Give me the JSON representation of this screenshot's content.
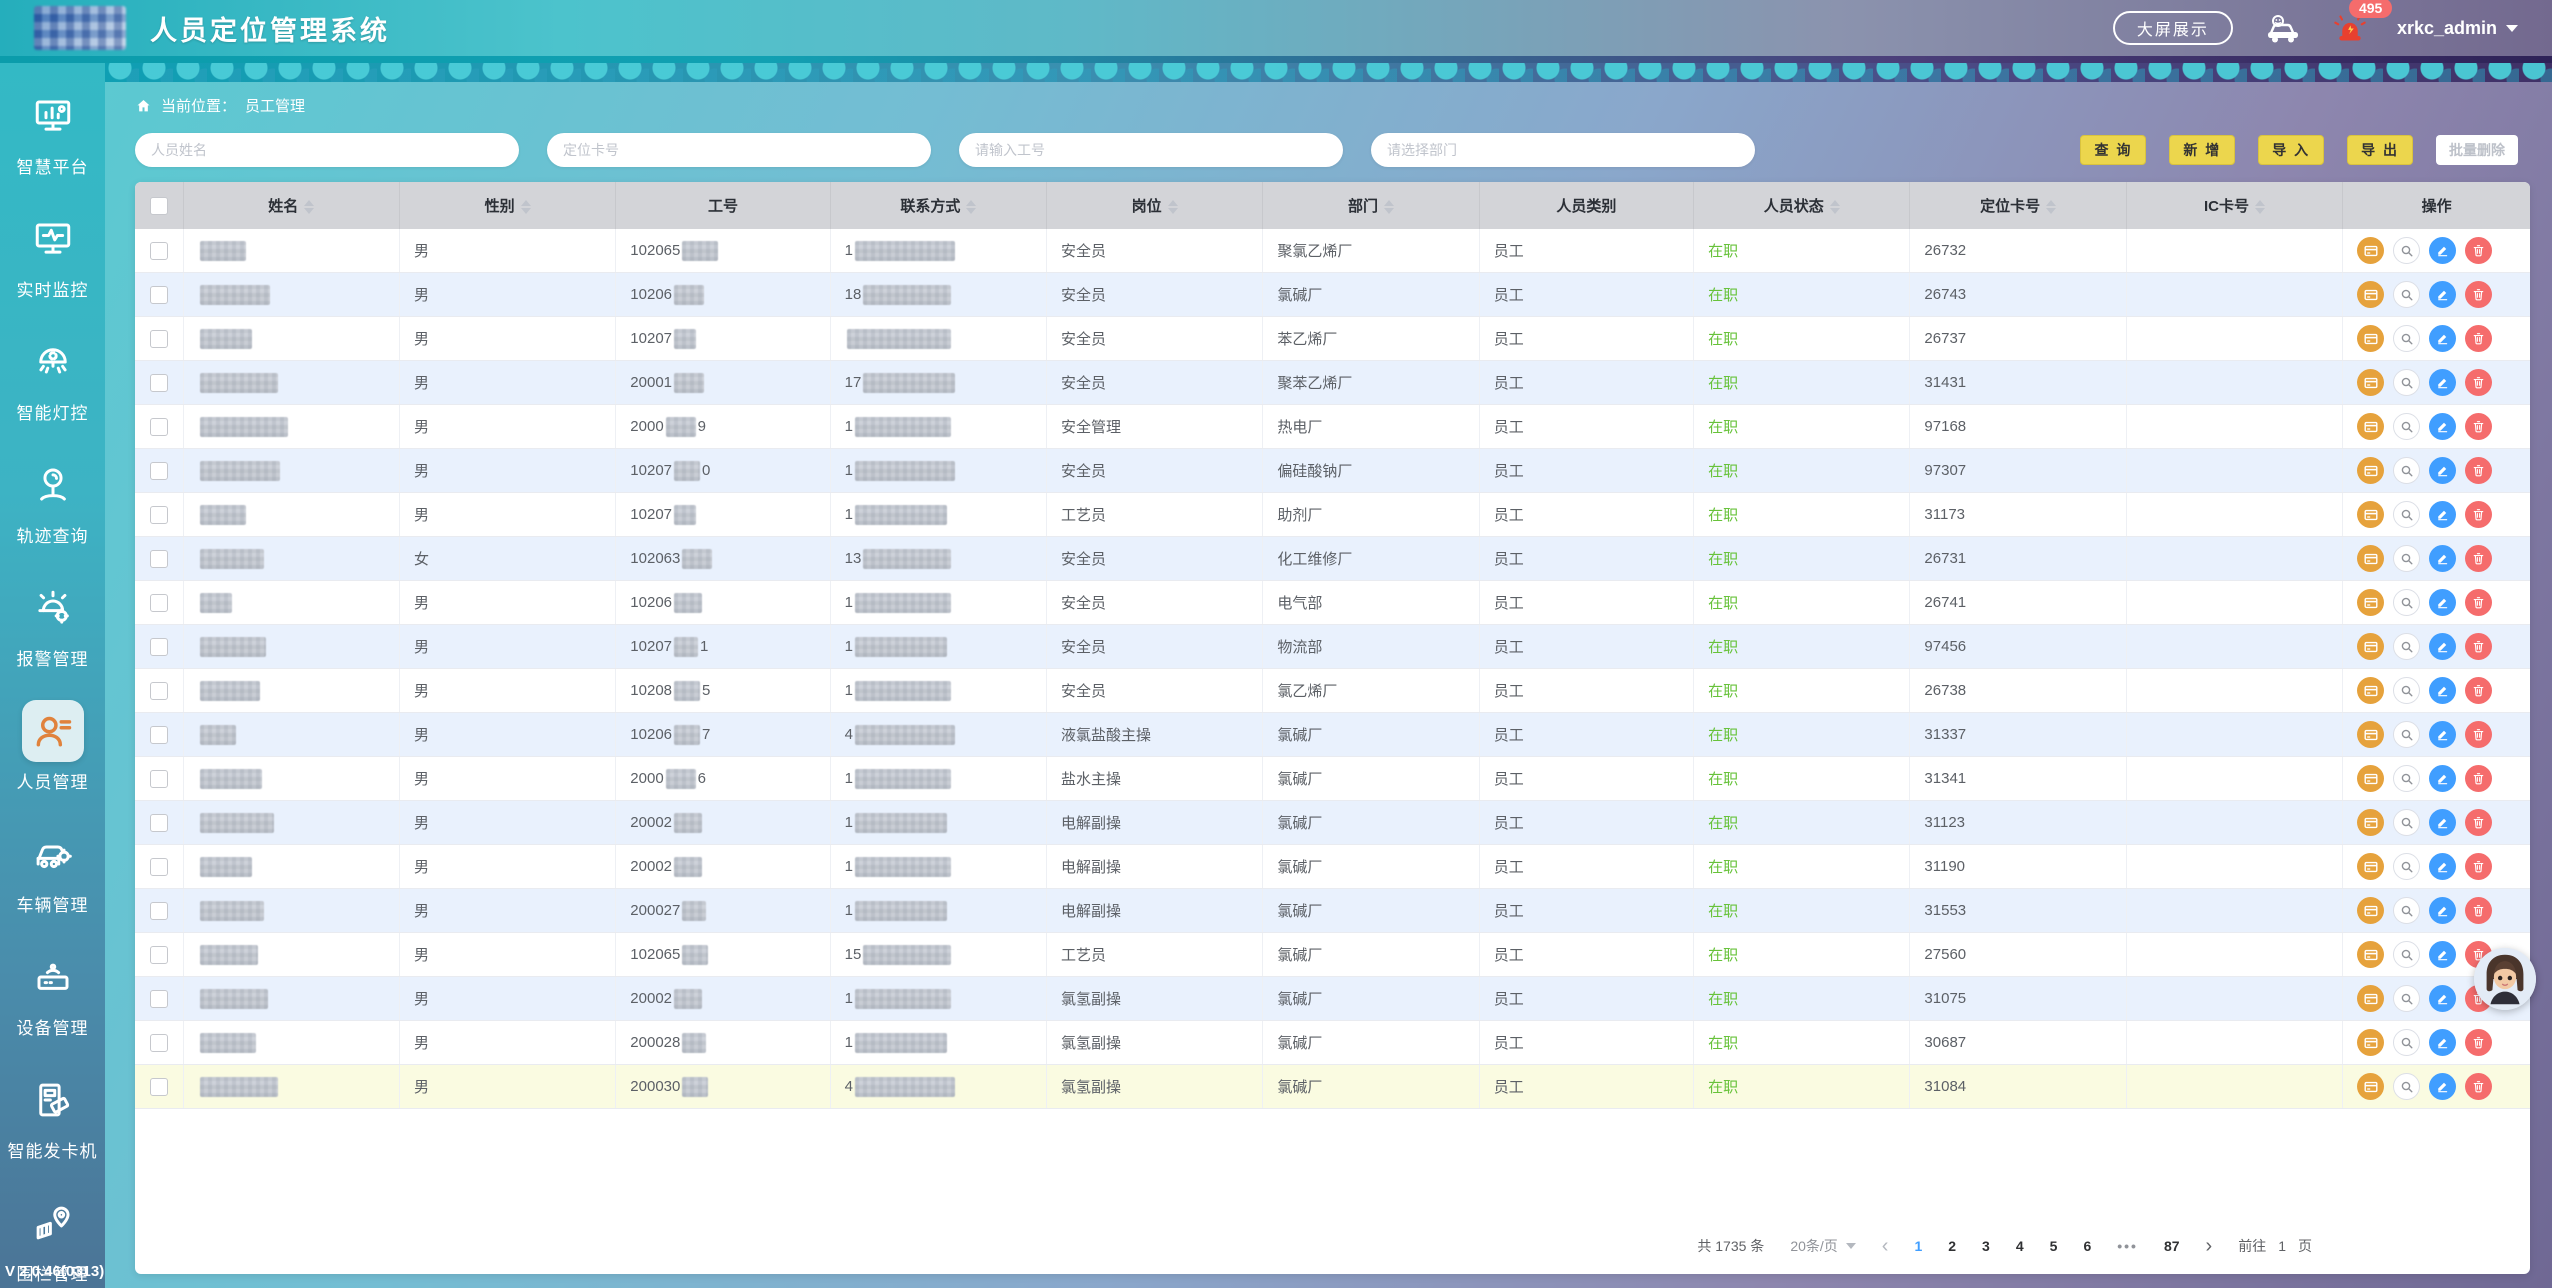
{
  "header": {
    "title": "人员定位管理系统",
    "big_screen_button": "大屏展示",
    "alarm_badge": "495",
    "username": "xrkc_admin"
  },
  "sidebar": {
    "items": [
      {
        "label": "智慧平台",
        "icon": "smart-platform-icon",
        "active": false
      },
      {
        "label": "实时监控",
        "icon": "realtime-monitor-icon",
        "active": false
      },
      {
        "label": "智能灯控",
        "icon": "smart-light-icon",
        "active": false
      },
      {
        "label": "轨迹查询",
        "icon": "track-query-icon",
        "active": false
      },
      {
        "label": "报警管理",
        "icon": "alarm-manage-icon",
        "active": false
      },
      {
        "label": "人员管理",
        "icon": "person-manage-icon",
        "active": true
      },
      {
        "label": "车辆管理",
        "icon": "vehicle-manage-icon",
        "active": false
      },
      {
        "label": "设备管理",
        "icon": "device-manage-icon",
        "active": false
      },
      {
        "label": "智能发卡机",
        "icon": "card-dispenser-icon",
        "active": false
      },
      {
        "label": "围栏管理",
        "icon": "fence-manage-icon",
        "active": false
      }
    ],
    "version": "V 2.0.46(0313)"
  },
  "breadcrumb": {
    "prefix": "当前位置：",
    "current": "员工管理"
  },
  "filters": {
    "name_placeholder": "人员姓名",
    "card_placeholder": "定位卡号",
    "workno_placeholder": "请输入工号",
    "dept_placeholder": "请选择部门"
  },
  "toolbar": {
    "query": "查 询",
    "add": "新 增",
    "import": "导 入",
    "export": "导 出",
    "batch_delete": "批量删除"
  },
  "table": {
    "columns": [
      {
        "label": "姓名",
        "sortable": true
      },
      {
        "label": "性别",
        "sortable": true
      },
      {
        "label": "工号",
        "sortable": false
      },
      {
        "label": "联系方式",
        "sortable": true
      },
      {
        "label": "岗位",
        "sortable": true
      },
      {
        "label": "部门",
        "sortable": true
      },
      {
        "label": "人员类别",
        "sortable": false
      },
      {
        "label": "人员状态",
        "sortable": true
      },
      {
        "label": "定位卡号",
        "sortable": true
      },
      {
        "label": "IC卡号",
        "sortable": true
      },
      {
        "label": "操作",
        "sortable": false
      }
    ],
    "status_color": "#67c23a",
    "rows": [
      {
        "name_w": 46,
        "gender": "男",
        "work_pre": "102065",
        "work_blur": 36,
        "work_suf": "",
        "contact_pre": "1",
        "contact_blur": 100,
        "position": "安全员",
        "department": "聚氯乙烯厂",
        "category": "员工",
        "status": "在职",
        "card": "26732",
        "ic": "",
        "hl": false
      },
      {
        "name_w": 70,
        "gender": "男",
        "work_pre": "10206",
        "work_blur": 30,
        "work_suf": "",
        "contact_pre": "18",
        "contact_blur": 88,
        "position": "安全员",
        "department": "氯碱厂",
        "category": "员工",
        "status": "在职",
        "card": "26743",
        "ic": "",
        "hl": false
      },
      {
        "name_w": 52,
        "gender": "男",
        "work_pre": "10207",
        "work_blur": 22,
        "work_suf": "",
        "contact_pre": "",
        "contact_blur": 104,
        "position": "安全员",
        "department": "苯乙烯厂",
        "category": "员工",
        "status": "在职",
        "card": "26737",
        "ic": "",
        "hl": false
      },
      {
        "name_w": 78,
        "gender": "男",
        "work_pre": "20001",
        "work_blur": 30,
        "work_suf": "",
        "contact_pre": "17",
        "contact_blur": 92,
        "position": "安全员",
        "department": "聚苯乙烯厂",
        "category": "员工",
        "status": "在职",
        "card": "31431",
        "ic": "",
        "hl": false
      },
      {
        "name_w": 88,
        "gender": "男",
        "work_pre": "2000",
        "work_blur": 30,
        "work_suf": "9",
        "contact_pre": "1",
        "contact_blur": 96,
        "position": "安全管理",
        "department": "热电厂",
        "category": "员工",
        "status": "在职",
        "card": "97168",
        "ic": "",
        "hl": false
      },
      {
        "name_w": 80,
        "gender": "男",
        "work_pre": "10207",
        "work_blur": 26,
        "work_suf": "0",
        "contact_pre": "1",
        "contact_blur": 100,
        "position": "安全员",
        "department": "偏硅酸钠厂",
        "category": "员工",
        "status": "在职",
        "card": "97307",
        "ic": "",
        "hl": false
      },
      {
        "name_w": 46,
        "gender": "男",
        "work_pre": "10207",
        "work_blur": 22,
        "work_suf": "",
        "contact_pre": "1",
        "contact_blur": 92,
        "position": "工艺员",
        "department": "助剂厂",
        "category": "员工",
        "status": "在职",
        "card": "31173",
        "ic": "",
        "hl": false
      },
      {
        "name_w": 64,
        "gender": "女",
        "work_pre": "102063",
        "work_blur": 30,
        "work_suf": "",
        "contact_pre": "13",
        "contact_blur": 88,
        "position": "安全员",
        "department": "化工维修厂",
        "category": "员工",
        "status": "在职",
        "card": "26731",
        "ic": "",
        "hl": false
      },
      {
        "name_w": 32,
        "gender": "男",
        "work_pre": "10206",
        "work_blur": 28,
        "work_suf": "",
        "contact_pre": "1",
        "contact_blur": 96,
        "position": "安全员",
        "department": "电气部",
        "category": "员工",
        "status": "在职",
        "card": "26741",
        "ic": "",
        "hl": false
      },
      {
        "name_w": 66,
        "gender": "男",
        "work_pre": "10207",
        "work_blur": 24,
        "work_suf": "1",
        "contact_pre": "1",
        "contact_blur": 92,
        "position": "安全员",
        "department": "物流部",
        "category": "员工",
        "status": "在职",
        "card": "97456",
        "ic": "",
        "hl": false
      },
      {
        "name_w": 60,
        "gender": "男",
        "work_pre": "10208",
        "work_blur": 26,
        "work_suf": "5",
        "contact_pre": "1",
        "contact_blur": 96,
        "position": "安全员",
        "department": "氯乙烯厂",
        "category": "员工",
        "status": "在职",
        "card": "26738",
        "ic": "",
        "hl": false
      },
      {
        "name_w": 36,
        "gender": "男",
        "work_pre": "10206",
        "work_blur": 26,
        "work_suf": "7",
        "contact_pre": "4",
        "contact_blur": 100,
        "position": "液氯盐酸主操",
        "department": "氯碱厂",
        "category": "员工",
        "status": "在职",
        "card": "31337",
        "ic": "",
        "hl": false
      },
      {
        "name_w": 62,
        "gender": "男",
        "work_pre": "2000",
        "work_blur": 30,
        "work_suf": "6",
        "contact_pre": "1",
        "contact_blur": 96,
        "position": "盐水主操",
        "department": "氯碱厂",
        "category": "员工",
        "status": "在职",
        "card": "31341",
        "ic": "",
        "hl": false
      },
      {
        "name_w": 74,
        "gender": "男",
        "work_pre": "20002",
        "work_blur": 28,
        "work_suf": "",
        "contact_pre": "1",
        "contact_blur": 92,
        "position": "电解副操",
        "department": "氯碱厂",
        "category": "员工",
        "status": "在职",
        "card": "31123",
        "ic": "",
        "hl": false
      },
      {
        "name_w": 52,
        "gender": "男",
        "work_pre": "20002",
        "work_blur": 28,
        "work_suf": "",
        "contact_pre": "1",
        "contact_blur": 96,
        "position": "电解副操",
        "department": "氯碱厂",
        "category": "员工",
        "status": "在职",
        "card": "31190",
        "ic": "",
        "hl": false
      },
      {
        "name_w": 64,
        "gender": "男",
        "work_pre": "200027",
        "work_blur": 24,
        "work_suf": "",
        "contact_pre": "1",
        "contact_blur": 92,
        "position": "电解副操",
        "department": "氯碱厂",
        "category": "员工",
        "status": "在职",
        "card": "31553",
        "ic": "",
        "hl": false
      },
      {
        "name_w": 58,
        "gender": "男",
        "work_pre": "102065",
        "work_blur": 26,
        "work_suf": "",
        "contact_pre": "15",
        "contact_blur": 88,
        "position": "工艺员",
        "department": "氯碱厂",
        "category": "员工",
        "status": "在职",
        "card": "27560",
        "ic": "",
        "hl": false
      },
      {
        "name_w": 68,
        "gender": "男",
        "work_pre": "20002",
        "work_blur": 28,
        "work_suf": "",
        "contact_pre": "1",
        "contact_blur": 96,
        "position": "氯氢副操",
        "department": "氯碱厂",
        "category": "员工",
        "status": "在职",
        "card": "31075",
        "ic": "",
        "hl": false
      },
      {
        "name_w": 56,
        "gender": "男",
        "work_pre": "200028",
        "work_blur": 24,
        "work_suf": "",
        "contact_pre": "1",
        "contact_blur": 92,
        "position": "氯氢副操",
        "department": "氯碱厂",
        "category": "员工",
        "status": "在职",
        "card": "30687",
        "ic": "",
        "hl": false
      },
      {
        "name_w": 78,
        "gender": "男",
        "work_pre": "200030",
        "work_blur": 26,
        "work_suf": "",
        "contact_pre": "4",
        "contact_blur": 100,
        "position": "氯氢副操",
        "department": "氯碱厂",
        "category": "员工",
        "status": "在职",
        "card": "31084",
        "ic": "",
        "hl": true
      }
    ]
  },
  "pagination": {
    "total_text": "共 1735 条",
    "page_size_text": "20条/页",
    "pages": [
      "1",
      "2",
      "3",
      "4",
      "5",
      "6",
      "•••",
      "87"
    ],
    "active_page": "1",
    "prev_label": "‹",
    "next_label": "›",
    "goto_prefix": "前往",
    "goto_value": "1",
    "goto_suffix": "页"
  }
}
